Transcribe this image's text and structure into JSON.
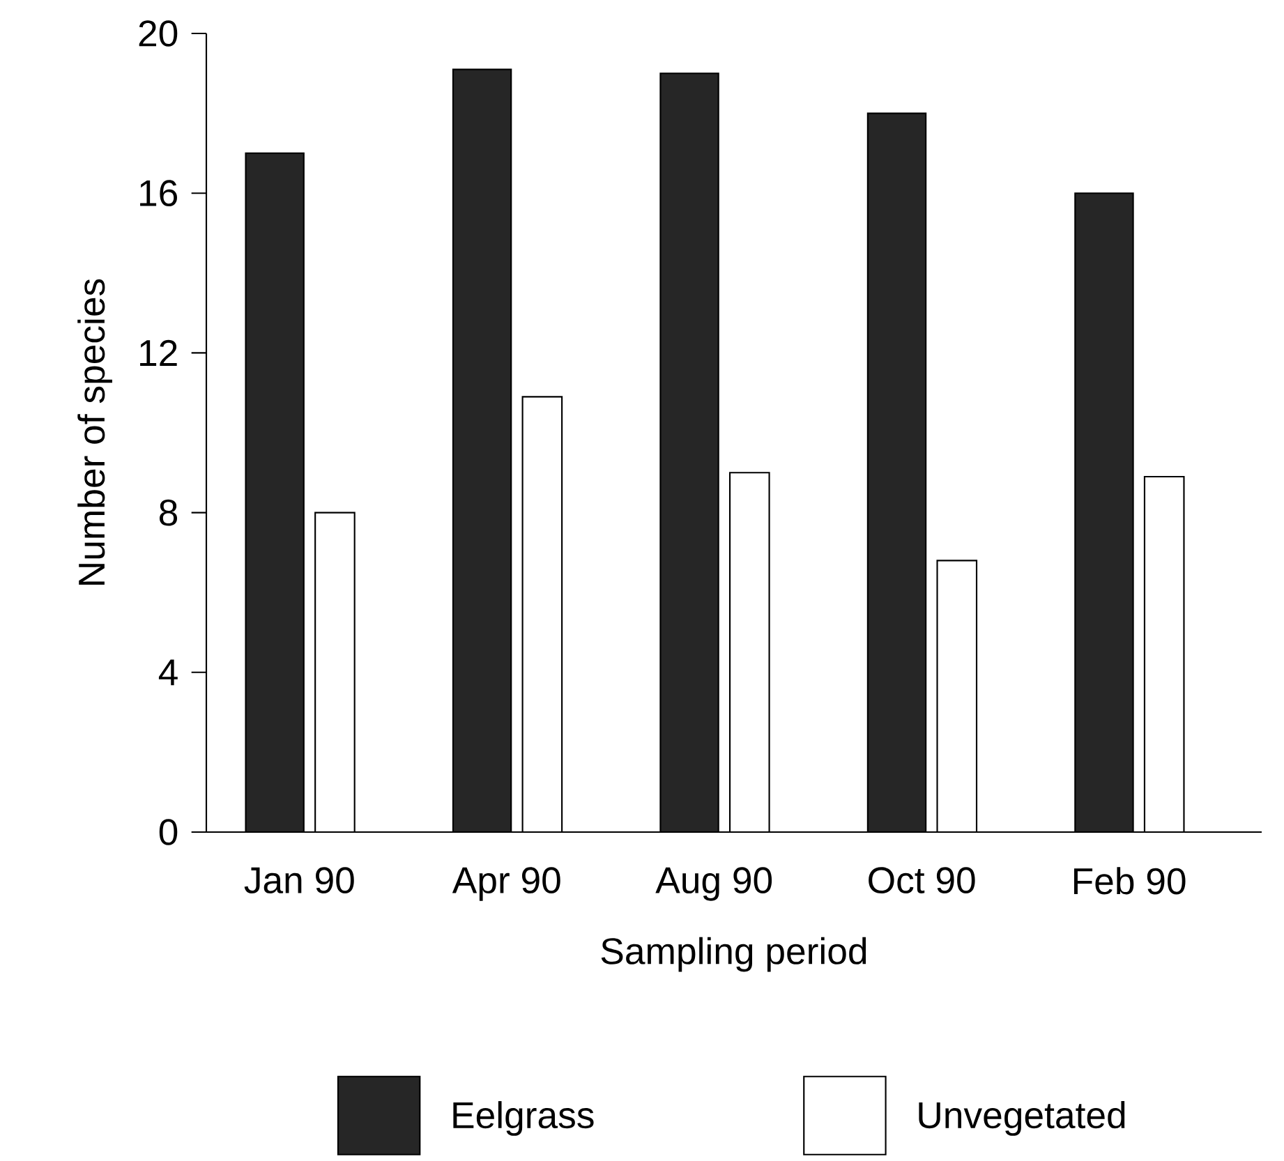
{
  "chart_data": {
    "type": "bar",
    "xlabel": "Sampling period",
    "ylabel": "Number of species",
    "categories": [
      "Jan 90",
      "Apr 90",
      "Aug 90",
      "Oct 90",
      "Feb 90"
    ],
    "series": [
      {
        "name": "Eelgrass",
        "color": "#262626",
        "values": [
          17,
          19.1,
          19,
          18,
          16
        ]
      },
      {
        "name": "Unvegetated",
        "color": "#ffffff",
        "values": [
          8,
          10.9,
          9,
          6.8,
          8.9
        ]
      }
    ],
    "ylim": [
      0,
      20
    ],
    "yticks": [
      0,
      4,
      8,
      12,
      16,
      20
    ],
    "grid": false,
    "legend": "bottom"
  }
}
